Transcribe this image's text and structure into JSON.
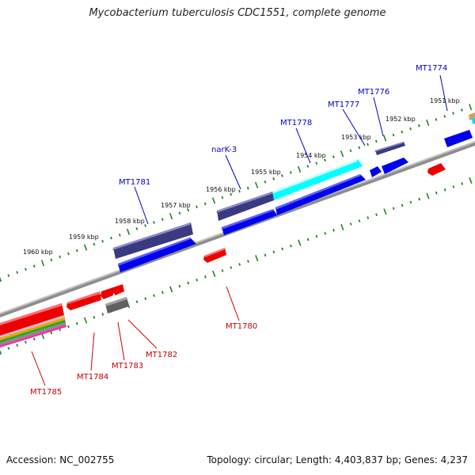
{
  "title": "Mycobacterium tuberculosis CDC1551, complete genome",
  "accession": "Accession: NC_002755",
  "topology": "Topology: circular; Length: 4,403,837 bp; Genes: 4,237",
  "colors": {
    "forward_label": "#0000cc",
    "reverse_label": "#cc0000",
    "tick": "#1a8a1a",
    "backbone": "#888888",
    "gene_blue": "#0000ee",
    "gene_navy": "#3b3b7a",
    "gene_cyan": "#00ffff",
    "gene_red": "#ee0000",
    "gene_gray": "#555555"
  },
  "ticks": [
    {
      "label": "1951 kbp"
    },
    {
      "label": "1952 kbp"
    },
    {
      "label": "1953 kbp"
    },
    {
      "label": "1954 kbp"
    },
    {
      "label": "1955 kbp"
    },
    {
      "label": "1956 kbp"
    },
    {
      "label": "1957 kbp"
    },
    {
      "label": "1958 kbp"
    },
    {
      "label": "1959 kbp"
    },
    {
      "label": "1960 kbp"
    }
  ],
  "forward_labels": [
    {
      "text": "MT1774"
    },
    {
      "text": "MT1776"
    },
    {
      "text": "MT1777"
    },
    {
      "text": "MT1778"
    },
    {
      "text": "narK-3"
    },
    {
      "text": "MT1781"
    }
  ],
  "reverse_labels": [
    {
      "text": "MT1780"
    },
    {
      "text": "MT1782"
    },
    {
      "text": "MT1783"
    },
    {
      "text": "MT1784"
    },
    {
      "text": "MT1785"
    }
  ]
}
